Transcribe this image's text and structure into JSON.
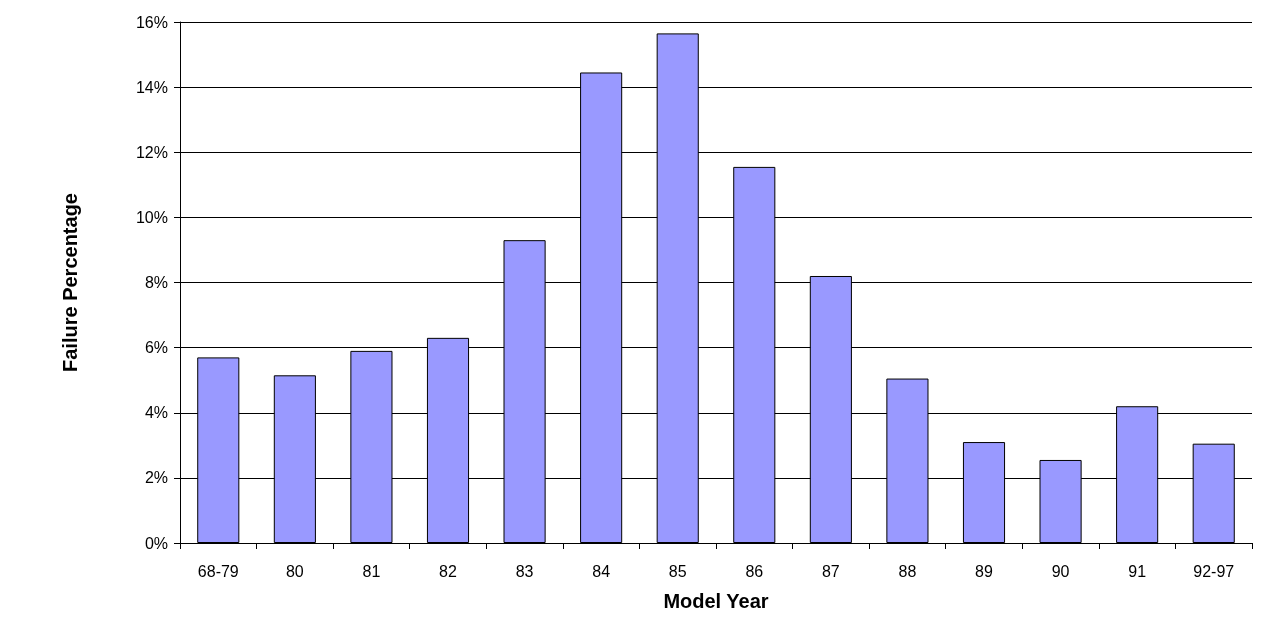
{
  "chart_data": {
    "type": "bar",
    "xlabel": "Model Year",
    "ylabel": "Failure Percentage",
    "categories": [
      "68-79",
      "80",
      "81",
      "82",
      "83",
      "84",
      "85",
      "86",
      "87",
      "88",
      "89",
      "90",
      "91",
      "92-97"
    ],
    "values": [
      5.7,
      5.15,
      5.9,
      6.3,
      9.3,
      14.45,
      15.65,
      11.55,
      8.2,
      5.05,
      3.1,
      2.55,
      4.2,
      3.05
    ],
    "color": "#9999ff",
    "ylim": [
      0,
      16
    ],
    "yticks": [
      {
        "value": 0,
        "label": "0%"
      },
      {
        "value": 2,
        "label": "2%"
      },
      {
        "value": 4,
        "label": "4%"
      },
      {
        "value": 6,
        "label": "6%"
      },
      {
        "value": 8,
        "label": "8%"
      },
      {
        "value": 10,
        "label": "10%"
      },
      {
        "value": 12,
        "label": "12%"
      },
      {
        "value": 14,
        "label": "14%"
      },
      {
        "value": 16,
        "label": "16%"
      }
    ],
    "grid": "y"
  }
}
